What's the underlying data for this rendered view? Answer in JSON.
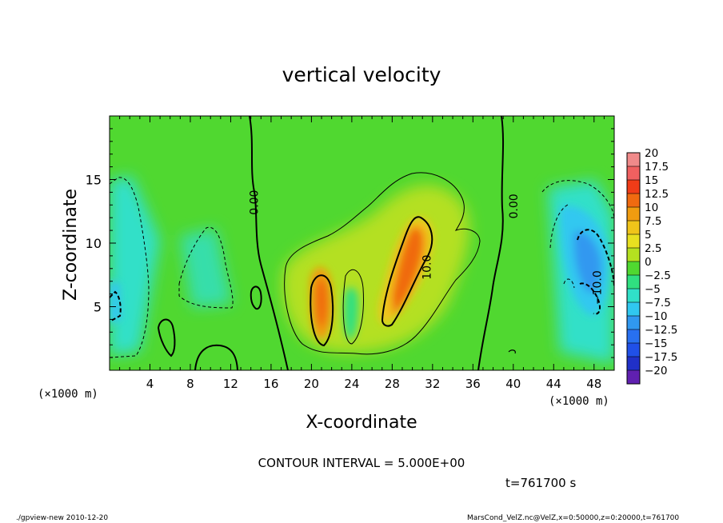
{
  "chart_data": {
    "type": "heatmap",
    "title": "vertical velocity",
    "xlabel": "X-coordinate",
    "ylabel": "Z-coordinate",
    "x_unit_left": "(×1000 m)",
    "x_unit_right": "(×1000 m)",
    "xlim": [
      0,
      50
    ],
    "ylim": [
      0,
      20
    ],
    "x_ticks": [
      4,
      8,
      12,
      16,
      20,
      24,
      28,
      32,
      36,
      40,
      44,
      48
    ],
    "x_tick_labels": [
      "4",
      "8",
      "12",
      "16",
      "20",
      "24",
      "28",
      "32",
      "36",
      "40",
      "44",
      "48"
    ],
    "y_ticks": [
      5,
      10,
      15
    ],
    "y_tick_labels": [
      "5",
      "10",
      "15"
    ],
    "colorbar": {
      "levels": [
        20,
        17.5,
        15,
        12.5,
        10,
        7.5,
        5,
        2.5,
        0,
        -2.5,
        -5,
        -7.5,
        -10,
        -12.5,
        -15,
        -17.5,
        -20
      ],
      "labels": [
        "20",
        "17.5",
        "15",
        "12.5",
        "10",
        "7.5",
        "5",
        "2.5",
        "0",
        "−2.5",
        "−5",
        "−7.5",
        "−10",
        "−12.5",
        "−15",
        "−17.5",
        "−20"
      ],
      "colors": [
        "#f08a8a",
        "#f06060",
        "#f03c18",
        "#f06a10",
        "#f09c10",
        "#f0c41a",
        "#e8e020",
        "#b4e020",
        "#50d830",
        "#30e080",
        "#30e0c8",
        "#30c8f0",
        "#3098f0",
        "#2870f0",
        "#2050e8",
        "#2030c8",
        "#6020b0"
      ]
    },
    "contour_labels": [
      {
        "text": "0.00",
        "x": 14.3,
        "z": 13.2
      },
      {
        "text": "0.00",
        "x": 40.0,
        "z": 12.9
      },
      {
        "text": "10.0",
        "x": 31.4,
        "z": 8.1
      },
      {
        "text": "−10.0",
        "x": 48.3,
        "z": 6.5
      }
    ],
    "contour_interval": 5.0,
    "time_s": 761700
  },
  "annotations": {
    "contour_interval_text": "CONTOUR INTERVAL = 5.000E+00",
    "time_text": "t=761700 s",
    "footer_left": "./gpview-new  2010-12-20",
    "footer_right": "MarsCond_VelZ.nc@VelZ,x=0:50000,z=0:20000,t=761700"
  }
}
